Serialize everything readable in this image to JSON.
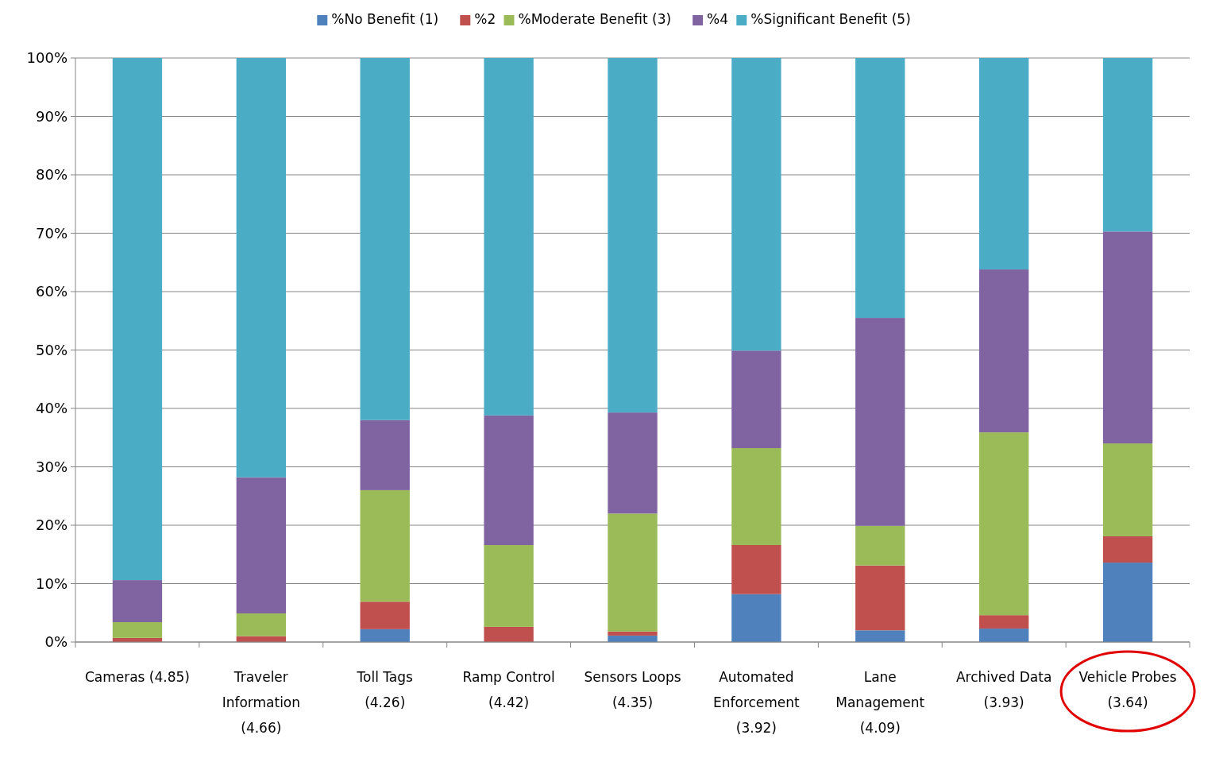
{
  "chart_data": {
    "type": "bar",
    "stacked": true,
    "legend": "top",
    "grid": "y",
    "categories": [
      "Cameras (4.85)",
      "Traveler Information (4.66)",
      "Toll Tags (4.26)",
      "Ramp Control (4.42)",
      "Sensors Loops (4.35)",
      "Automated Enforcement (3.92)",
      "Lane Management (4.09)",
      "Archived Data (3.93)",
      "Vehicle Probes (3.64)"
    ],
    "series": [
      {
        "name": "%No Benefit (1)",
        "color": "#4f81bd",
        "values": [
          0,
          0,
          2.2,
          0,
          1.1,
          8.2,
          2.0,
          2.3,
          13.6
        ]
      },
      {
        "name": "%2",
        "color": "#c0504d",
        "values": [
          0.7,
          1.0,
          4.7,
          2.6,
          0.7,
          8.4,
          11.1,
          2.3,
          4.5
        ]
      },
      {
        "name": "%Moderate Benefit (3)",
        "color": "#9bbb59",
        "values": [
          2.7,
          3.9,
          19.1,
          14.0,
          20.2,
          16.6,
          6.8,
          31.3,
          15.9
        ]
      },
      {
        "name": "%4",
        "color": "#8064a2",
        "values": [
          7.2,
          23.3,
          12.0,
          22.2,
          17.3,
          16.7,
          35.6,
          27.9,
          36.3
        ]
      },
      {
        "name": "%Significant Benefit (5)",
        "color": "#4bacc6",
        "values": [
          89.4,
          71.8,
          62.0,
          61.2,
          60.7,
          50.1,
          44.5,
          36.2,
          29.7
        ]
      }
    ],
    "ylim": [
      0,
      100
    ],
    "yticks": [
      {
        "value": 0,
        "label": "0%"
      },
      {
        "value": 10,
        "label": "10%"
      },
      {
        "value": 20,
        "label": "20%"
      },
      {
        "value": 30,
        "label": "30%"
      },
      {
        "value": 40,
        "label": "40%"
      },
      {
        "value": 50,
        "label": "50%"
      },
      {
        "value": 60,
        "label": "60%"
      },
      {
        "value": 70,
        "label": "70%"
      },
      {
        "value": 80,
        "label": "80%"
      },
      {
        "value": 90,
        "label": "90%"
      },
      {
        "value": 100,
        "label": "100%"
      }
    ]
  }
}
